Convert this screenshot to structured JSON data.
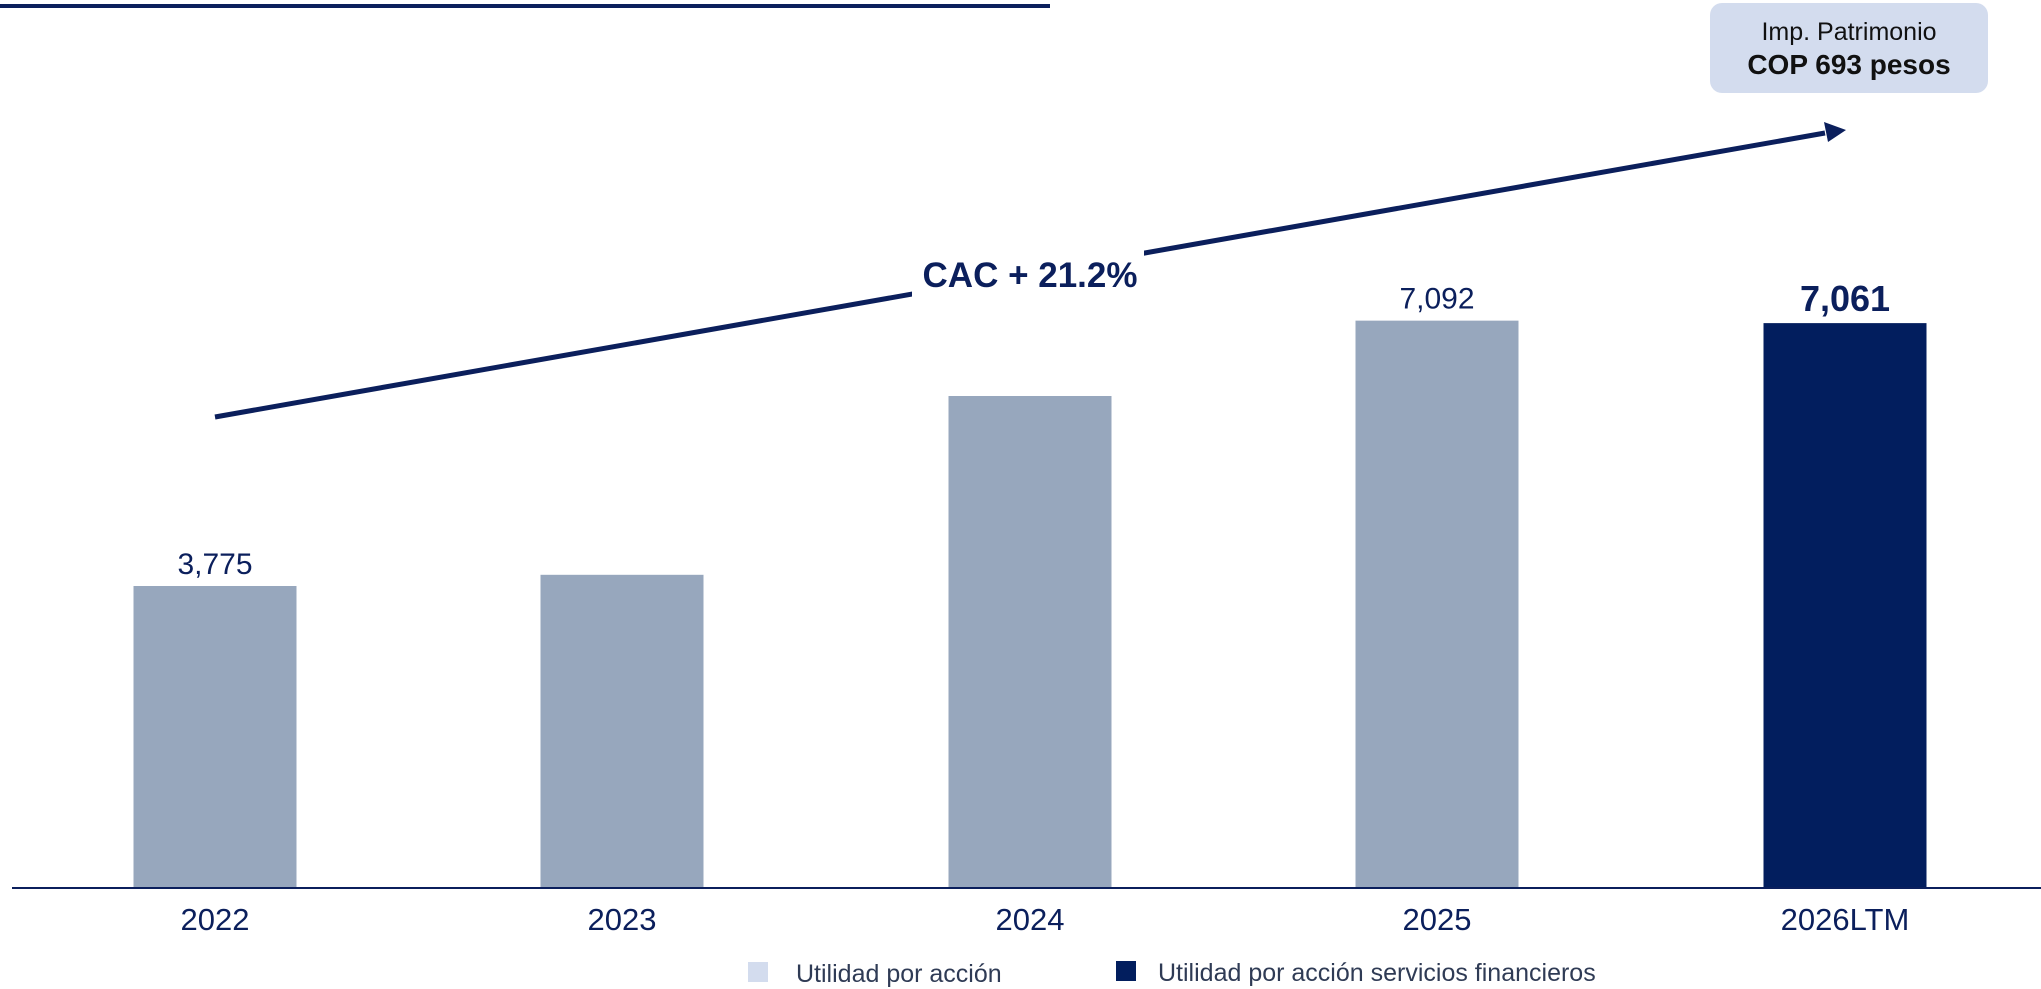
{
  "callout": {
    "line1": "Imp. Patrimonio",
    "line2": "COP 693 pesos"
  },
  "colors": {
    "light_bar": "#97a7bd",
    "dark_bar": "#021e5e",
    "navy": "#0b1f5c",
    "legend_light": "#d3dcee"
  },
  "chart_data": {
    "type": "bar",
    "categories": [
      "2022",
      "2023",
      "2024",
      "2025",
      "2026LTM"
    ],
    "series": [
      {
        "name": "Utilidad por acción",
        "values": [
          3775,
          3915,
          6150,
          7092,
          null
        ]
      },
      {
        "name": "Utilidad por acción servicios financieros",
        "values": [
          null,
          null,
          null,
          null,
          7061
        ]
      }
    ],
    "data_labels": [
      "3,775",
      "",
      "",
      "7,092",
      "7,061"
    ],
    "annotation": "CAC + 21.2%",
    "ylim": [
      0,
      8000
    ],
    "grid": false,
    "legend_position": "bottom-center"
  }
}
